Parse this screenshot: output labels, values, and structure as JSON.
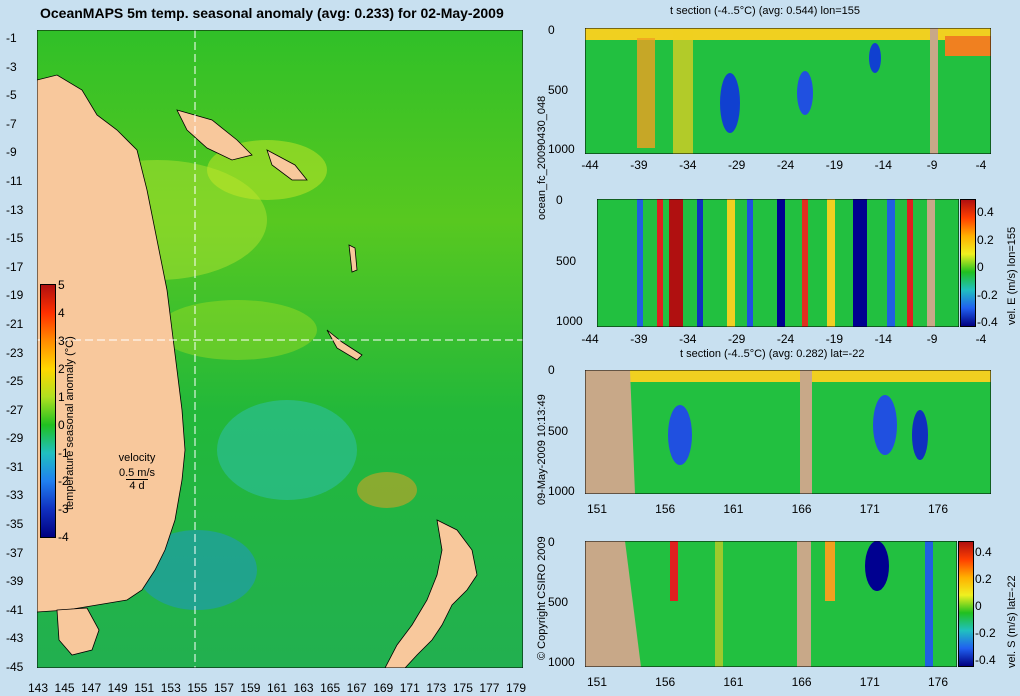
{
  "header": {
    "title": "OceanMAPS 5m temp. seasonal anomaly (avg: 0.233) for 02-May-2009"
  },
  "map": {
    "lat_ticks": [
      "-1",
      "-3",
      "-5",
      "-7",
      "-9",
      "-11",
      "-13",
      "-15",
      "-17",
      "-19",
      "-21",
      "-23",
      "-25",
      "-27",
      "-29",
      "-31",
      "-33",
      "-35",
      "-37",
      "-39",
      "-41",
      "-43",
      "-45"
    ],
    "lon_ticks": [
      "143",
      "145",
      "147",
      "149",
      "151",
      "153",
      "155",
      "157",
      "159",
      "161",
      "163",
      "165",
      "167",
      "169",
      "171",
      "173",
      "175",
      "177",
      "179"
    ],
    "colorbar": {
      "label": "temperature seasonal anomaly (°C)",
      "ticks": [
        "5",
        "4",
        "3",
        "2",
        "1",
        "0",
        "-1",
        "-2",
        "-3",
        "-4"
      ]
    },
    "velocity_legend": {
      "title": "velocity",
      "speed": "0.5 m/s",
      "days": "4 d"
    },
    "colors": {
      "land": "#f8c89c",
      "ocean_mid": "#22c322",
      "section_land": "#c8a888"
    }
  },
  "side_labels": {
    "run_id": "ocean_fc_20090430_048",
    "timestamp": "09-May-2009 10:13:49",
    "copyright": "© Copyright CSIRO 2009"
  },
  "panels": {
    "p1": {
      "title": "t section (-4..5°C) (avg: 0.544) lon=155",
      "x_ticks": [
        "-44",
        "-39",
        "-34",
        "-29",
        "-24",
        "-19",
        "-14",
        "-9",
        "-4"
      ],
      "y_ticks": [
        "0",
        "500",
        "1000"
      ]
    },
    "p2": {
      "x_ticks": [
        "-44",
        "-39",
        "-34",
        "-29",
        "-24",
        "-19",
        "-14",
        "-9",
        "-4"
      ],
      "y_ticks": [
        "0",
        "500",
        "1000"
      ],
      "cbar_label": "vel. E (m/s) lon=155",
      "cbar_ticks": [
        "0.4",
        "0.2",
        "0",
        "-0.2",
        "-0.4"
      ]
    },
    "p3": {
      "title": "t section (-4..5°C) (avg: 0.282) lat=-22",
      "x_ticks": [
        "151",
        "156",
        "161",
        "166",
        "171",
        "176"
      ],
      "y_ticks": [
        "0",
        "500",
        "1000"
      ]
    },
    "p4": {
      "x_ticks": [
        "151",
        "156",
        "161",
        "166",
        "171",
        "176"
      ],
      "y_ticks": [
        "0",
        "500",
        "1000"
      ],
      "cbar_label": "vel. S (m/s) lat=-22",
      "cbar_ticks": [
        "0.4",
        "0.2",
        "0",
        "-0.2",
        "-0.4"
      ]
    }
  }
}
